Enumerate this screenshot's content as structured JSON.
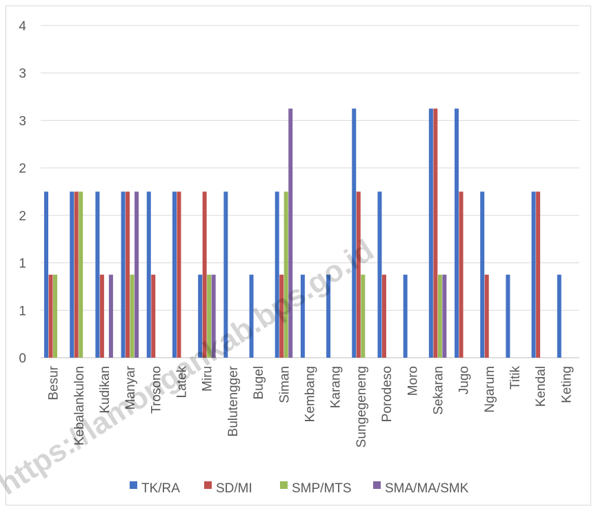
{
  "chart_data": {
    "type": "bar",
    "title": "",
    "xlabel": "",
    "ylabel": "",
    "ylim": [
      0,
      4
    ],
    "y_tick_labels": [
      "0",
      "1",
      "1",
      "2",
      "2",
      "3",
      "3",
      "4"
    ],
    "grid": true,
    "legend_position": "bottom",
    "categories": [
      "Besur",
      "Kebalankulon",
      "Kudikan",
      "Manyar",
      "Trosono",
      "Latek",
      "Miru",
      "Bulutengger",
      "Bugel",
      "Siman",
      "Kembang",
      "Karang",
      "Sungegeneng",
      "Porodeso",
      "Moro",
      "Sekaran",
      "Jugo",
      "Ngarum",
      "Titik",
      "Kendal",
      "Keting"
    ],
    "series": [
      {
        "name": "TK/RA",
        "color": "#4472c4",
        "values": [
          2,
          2,
          2,
          2,
          2,
          2,
          1,
          2,
          1,
          2,
          1,
          1,
          3,
          2,
          1,
          3,
          3,
          2,
          1,
          2,
          1
        ]
      },
      {
        "name": "SD/MI",
        "color": "#c0504d",
        "values": [
          1,
          2,
          1,
          2,
          1,
          2,
          2,
          0,
          0,
          1,
          0,
          0,
          2,
          1,
          0,
          3,
          2,
          1,
          0,
          2,
          0
        ]
      },
      {
        "name": "SMP/MTS",
        "color": "#9bbb59",
        "values": [
          1,
          2,
          0,
          1,
          0,
          0,
          1,
          0,
          0,
          2,
          0,
          0,
          1,
          0,
          0,
          1,
          0,
          0,
          0,
          0,
          0
        ]
      },
      {
        "name": "SMA/MA/SMK",
        "color": "#8064a2",
        "values": [
          0,
          0,
          1,
          2,
          0,
          0,
          1,
          0,
          0,
          3,
          0,
          0,
          0,
          0,
          0,
          1,
          0,
          0,
          0,
          0,
          0
        ]
      }
    ],
    "watermark": "https://lamongankab.bps.go.id"
  }
}
